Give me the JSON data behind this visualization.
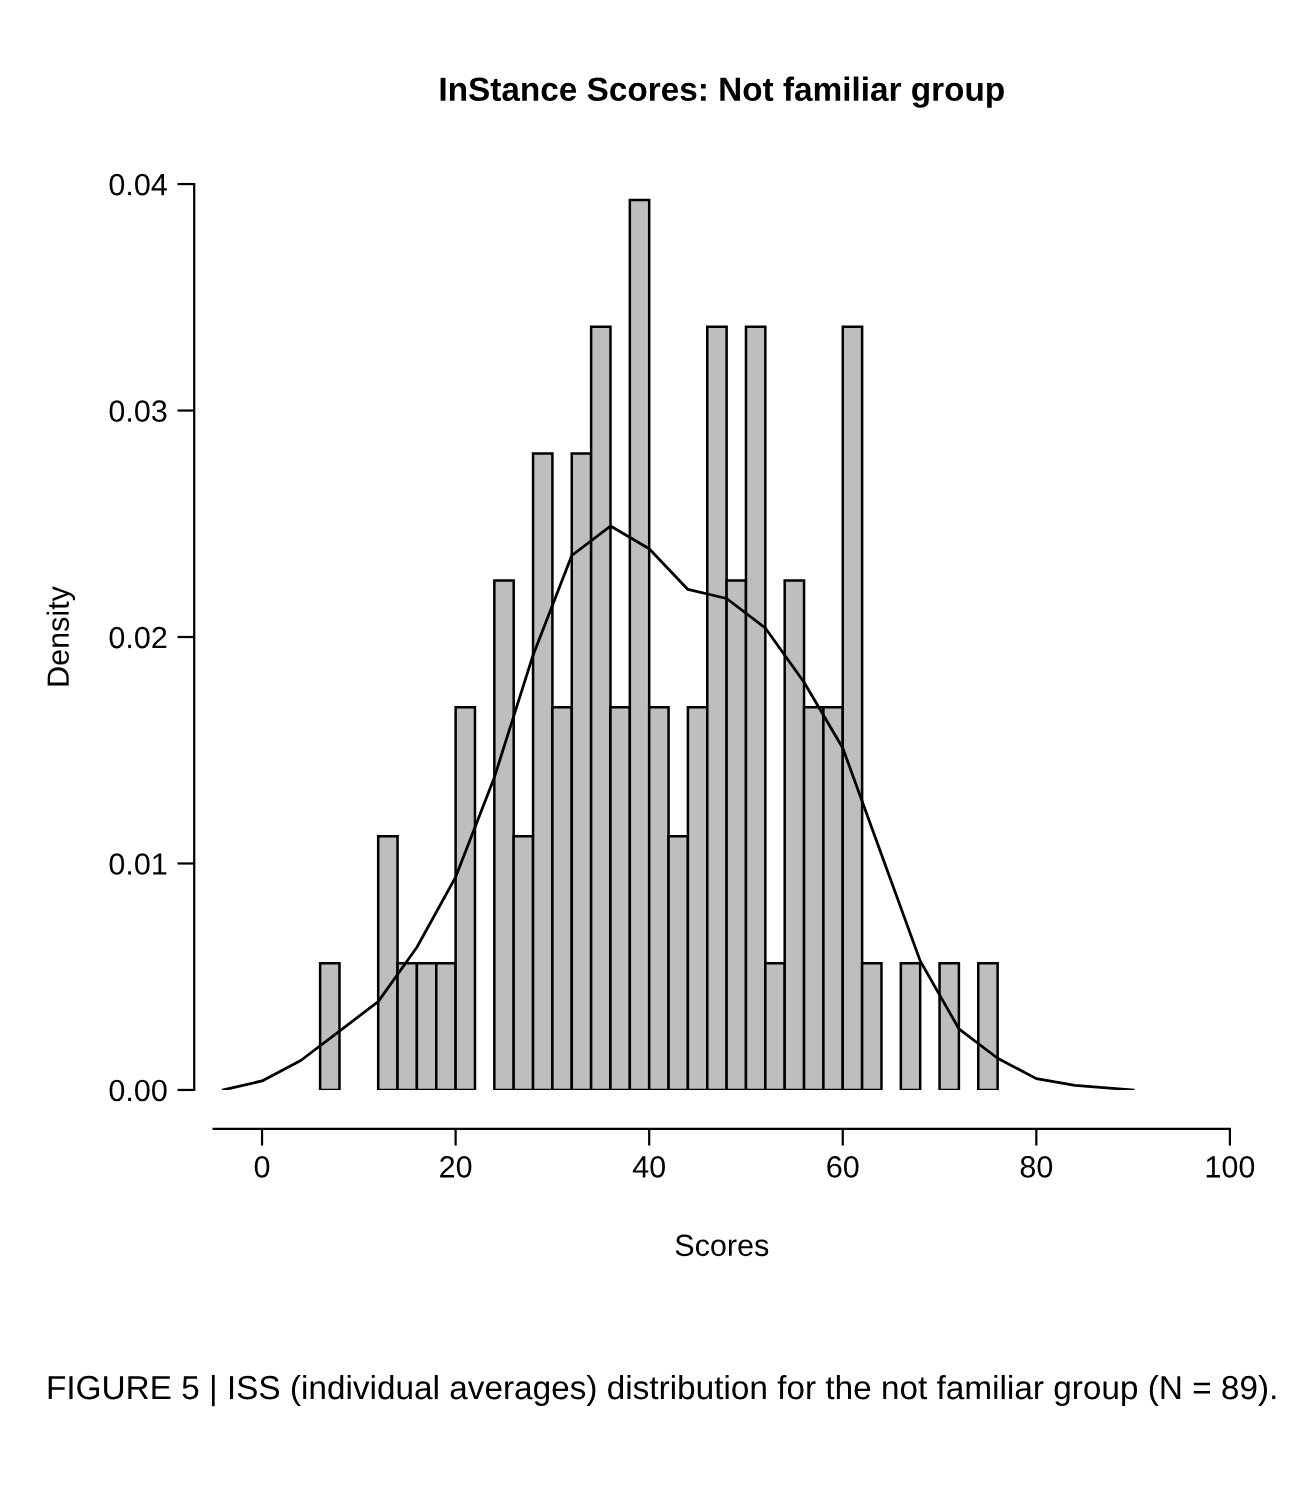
{
  "chart_data": {
    "type": "histogram",
    "title": "InStance Scores: Not familiar group",
    "xlabel": "Scores",
    "ylabel": "Density",
    "bins": [
      6,
      8,
      10,
      12,
      14,
      16,
      18,
      20,
      22,
      24,
      26,
      28,
      30,
      32,
      34,
      36,
      38,
      40,
      42,
      44,
      46,
      48,
      50,
      52,
      54,
      56,
      58,
      60,
      62,
      64,
      66,
      68,
      70,
      72,
      74,
      76
    ],
    "values": [
      0.0056,
      0,
      0,
      0.0112,
      0.0056,
      0.0056,
      0.0056,
      0.0169,
      0,
      0.0225,
      0.0112,
      0.0281,
      0.0169,
      0.0281,
      0.0337,
      0.0169,
      0.0393,
      0.0169,
      0.0112,
      0.0169,
      0.0337,
      0.0225,
      0.0337,
      0.0056,
      0.0225,
      0.0169,
      0.0169,
      0.0337,
      0.0056,
      0,
      0.0056,
      0,
      0.0056,
      0,
      0.0056
    ],
    "color": "#bebebe",
    "series": [
      {
        "type": "line",
        "color": "#000000",
        "x": [
          -4,
          0,
          4,
          8,
          12,
          16,
          20,
          24,
          28,
          32,
          36,
          40,
          44,
          48,
          52,
          56,
          60,
          64,
          68,
          72,
          76,
          80,
          84,
          90
        ],
        "values": [
          0,
          0.0004,
          0.0013,
          0.0026,
          0.0039,
          0.0063,
          0.0094,
          0.0138,
          0.0192,
          0.0236,
          0.0249,
          0.0239,
          0.0221,
          0.0217,
          0.0204,
          0.018,
          0.0151,
          0.0104,
          0.0057,
          0.0027,
          0.0014,
          0.0005,
          0.0002,
          0
        ]
      }
    ],
    "xlim": [
      -5,
      100
    ],
    "ylim": [
      0,
      0.04
    ],
    "xticks": [
      0,
      20,
      40,
      60,
      80,
      100
    ],
    "yticks": [
      {
        "value": 0,
        "label": "0.00"
      },
      {
        "value": 0.01,
        "label": "0.01"
      },
      {
        "value": 0.02,
        "label": "0.02"
      },
      {
        "value": 0.03,
        "label": "0.03"
      },
      {
        "value": 0.04,
        "label": "0.04"
      }
    ],
    "grid": false,
    "legend": false,
    "annotations": [
      "FIGURE 5 | ISS (individual averages) distribution for the not familiar group (N = 89)."
    ]
  }
}
